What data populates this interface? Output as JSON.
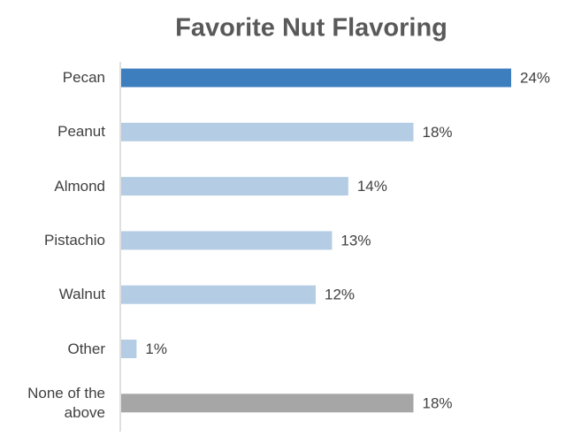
{
  "chart_data": {
    "type": "bar",
    "orientation": "horizontal",
    "title": "Favorite Nut Flavoring",
    "categories": [
      "Pecan",
      "Peanut",
      "Almond",
      "Pistachio",
      "Walnut",
      "Other",
      "None of the above"
    ],
    "values": [
      24,
      18,
      14,
      13,
      12,
      1,
      18
    ],
    "value_labels": [
      "24%",
      "18%",
      "14%",
      "13%",
      "12%",
      "1%",
      "18%"
    ],
    "colors": [
      "#3d7ebf",
      "#b4cde4",
      "#b4cde4",
      "#b4cde4",
      "#b4cde4",
      "#b4cde4",
      "#a6a6a6"
    ]
  }
}
